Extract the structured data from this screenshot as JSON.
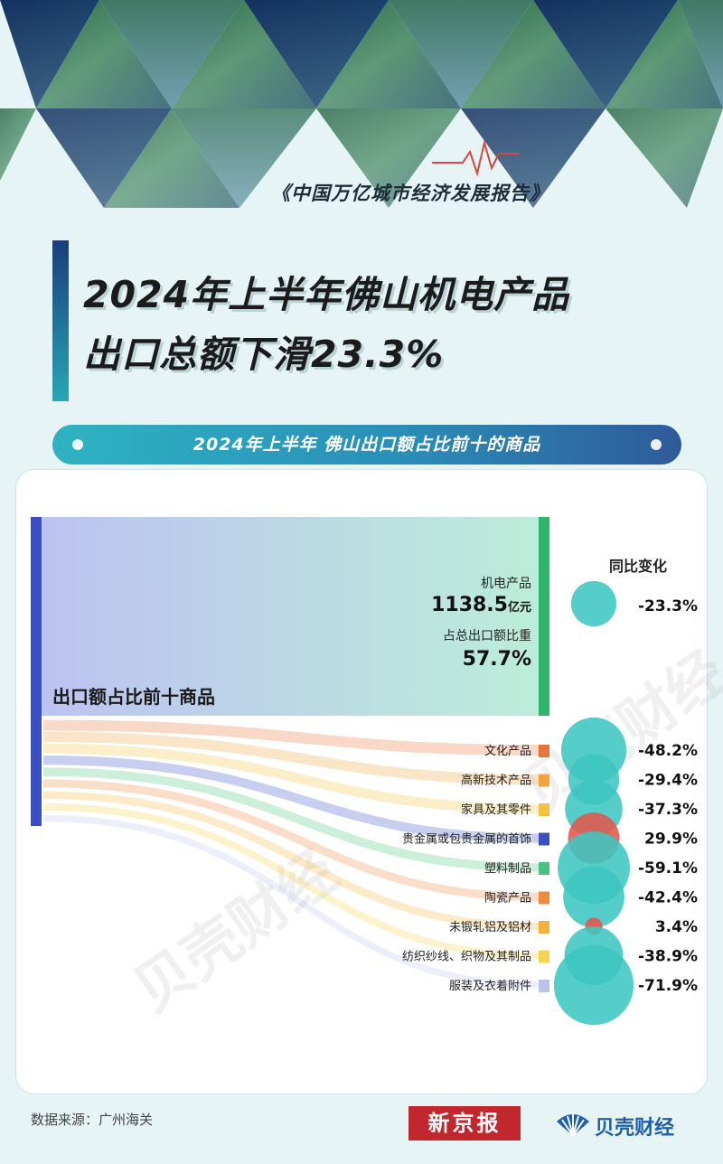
{
  "report_name": "《中国万亿城市经济发展报告》",
  "headline": {
    "line1": "2024年上半年佛山机电产品",
    "line2": "出口总额下滑23.3%"
  },
  "subtitle": "2024年上半年 佛山出口额占比前十的商品",
  "watermark": "贝壳财经",
  "colors": {
    "accent": "#2eb3c1",
    "negative": "#3ec6c0",
    "positive": "#e2584c"
  },
  "chart_data": {
    "type": "sankey",
    "source_label": "出口额占比前十商品",
    "yoy_header": "同比变化",
    "main_item": {
      "name": "机电产品",
      "value_number": "1138.5",
      "value_unit": "亿元",
      "share_label": "占总出口额比重",
      "share_value": "57.7%",
      "yoy": "-23.3%",
      "yoy_value": -23.3,
      "color": "#2db56c"
    },
    "items": [
      {
        "name": "文化产品",
        "yoy": "-48.2%",
        "yoy_value": -48.2,
        "color": "#e8743b"
      },
      {
        "name": "高新技术产品",
        "yoy": "-29.4%",
        "yoy_value": -29.4,
        "color": "#f2a33a"
      },
      {
        "name": "家具及其零件",
        "yoy": "-37.3%",
        "yoy_value": -37.3,
        "color": "#f5c33b"
      },
      {
        "name": "贵金属或包贵金属的首饰",
        "yoy": "29.9%",
        "yoy_value": 29.9,
        "color": "#3b4fc4"
      },
      {
        "name": "塑料制品",
        "yoy": "-59.1%",
        "yoy_value": -59.1,
        "color": "#45c47f"
      },
      {
        "name": "陶瓷产品",
        "yoy": "-42.4%",
        "yoy_value": -42.4,
        "color": "#ef8a3c"
      },
      {
        "name": "未锻轧铝及铝材",
        "yoy": "3.4%",
        "yoy_value": 3.4,
        "color": "#f5b23b"
      },
      {
        "name": "纺织纱线、织物及其制品",
        "yoy": "-38.9%",
        "yoy_value": -38.9,
        "color": "#f5d34a"
      },
      {
        "name": "服装及衣着附件",
        "yoy": "-71.9%",
        "yoy_value": -71.9,
        "color": "#b9c3ee"
      }
    ]
  },
  "footer": {
    "source": "数据来源：广州海关",
    "logo_xjb": "新京报",
    "logo_bk": "贝壳财经"
  }
}
